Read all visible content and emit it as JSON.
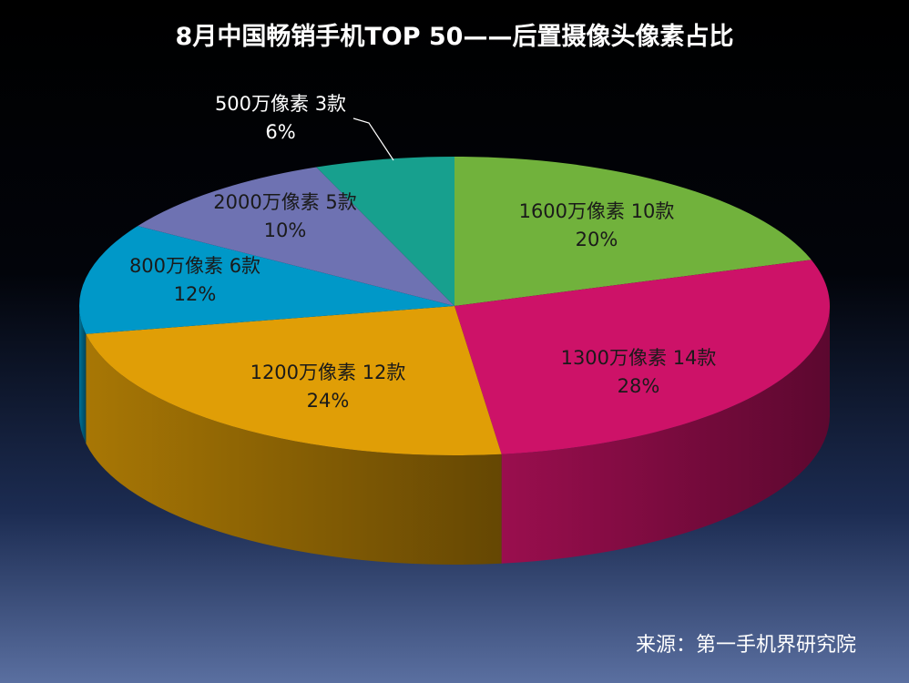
{
  "title": "8月中国畅销手机TOP 50——后置摄像头像素占比",
  "source": "来源：第一手机界研究院",
  "chart_data": {
    "type": "pie",
    "title": "8月中国畅销手机TOP 50——后置摄像头像素占比",
    "slices": [
      {
        "label": "1600万像素 10款",
        "count": 10,
        "value": 20,
        "percent_label": "20%",
        "color": "#71b23c"
      },
      {
        "label": "1300万像素 14款",
        "count": 14,
        "value": 28,
        "percent_label": "28%",
        "color": "#cd1268"
      },
      {
        "label": "1200万像素 12款",
        "count": 12,
        "value": 24,
        "percent_label": "24%",
        "color": "#e09e06"
      },
      {
        "label": "800万像素  6款",
        "count": 6,
        "value": 12,
        "percent_label": "12%",
        "color": "#0098c8"
      },
      {
        "label": "2000万像素 5款",
        "count": 5,
        "value": 10,
        "percent_label": "10%",
        "color": "#6e72b2"
      },
      {
        "label": "500万像素  3款",
        "count": 3,
        "value": 6,
        "percent_label": "6%",
        "color": "#17a08e"
      }
    ],
    "legend": "none",
    "style": "3d"
  }
}
